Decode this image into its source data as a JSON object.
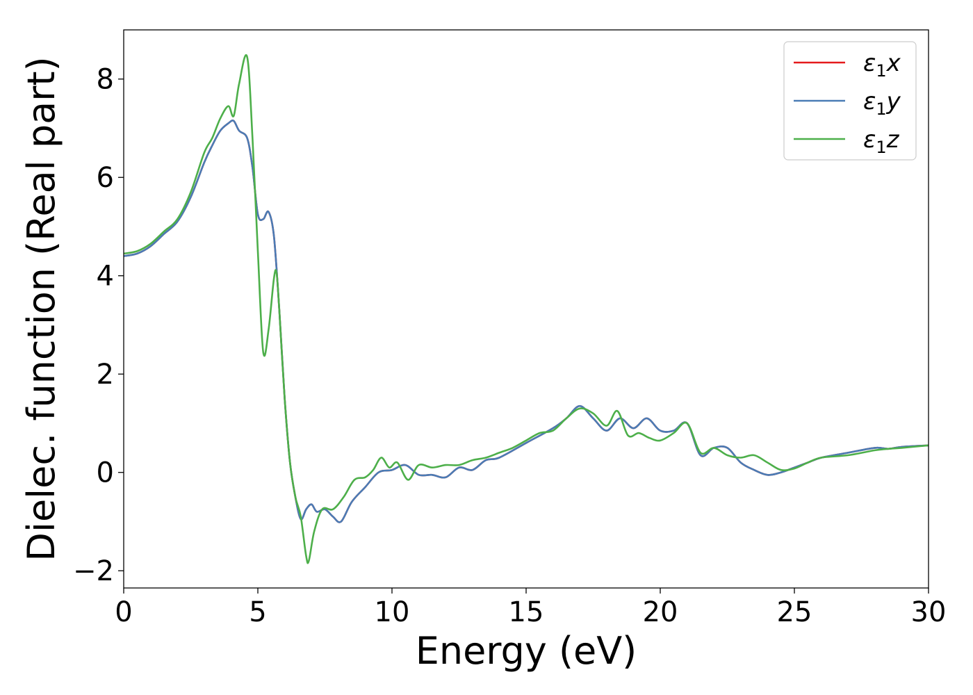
{
  "chart_data": {
    "type": "line",
    "xlabel": "Energy (eV)",
    "ylabel": "Dielec. function (Real part)",
    "xlim": [
      0,
      30
    ],
    "ylim": [
      -2.35,
      9.0
    ],
    "xticks": [
      0,
      5,
      10,
      15,
      20,
      25,
      30
    ],
    "yticks": [
      -2,
      0,
      2,
      4,
      6,
      8
    ],
    "xtick_labels": [
      "0",
      "5",
      "10",
      "15",
      "20",
      "25",
      "30"
    ],
    "ytick_labels": [
      "−2",
      "0",
      "2",
      "4",
      "6",
      "8"
    ],
    "grid": false,
    "legend_position": "top-right",
    "series": [
      {
        "name": "ε",
        "sub": "1",
        "suffix": "x",
        "color": "#e41a1c",
        "x": [
          0,
          0.5,
          1,
          1.5,
          2,
          2.5,
          3,
          3.3,
          3.6,
          3.9,
          4.1,
          4.3,
          4.6,
          4.8,
          5.0,
          5.2,
          5.4,
          5.6,
          5.8,
          6.0,
          6.2,
          6.4,
          6.6,
          6.8,
          7.0,
          7.2,
          7.5,
          7.8,
          8.1,
          8.5,
          9.0,
          9.5,
          10.0,
          10.5,
          11.0,
          11.5,
          12.0,
          12.5,
          13.0,
          13.5,
          14.0,
          15.0,
          16.0,
          16.5,
          17.0,
          17.5,
          18.0,
          18.5,
          19.0,
          19.5,
          20.0,
          20.5,
          21.0,
          21.5,
          22.0,
          22.5,
          23.0,
          23.5,
          24.0,
          24.5,
          25.0,
          25.5,
          26.0,
          27.0,
          28.0,
          28.5,
          29.0,
          30.0
        ],
        "y": [
          4.4,
          4.45,
          4.6,
          4.85,
          5.1,
          5.6,
          6.3,
          6.65,
          6.95,
          7.1,
          7.15,
          6.95,
          6.8,
          6.2,
          5.25,
          5.15,
          5.3,
          4.8,
          3.3,
          1.5,
          0.2,
          -0.5,
          -0.95,
          -0.75,
          -0.65,
          -0.8,
          -0.75,
          -0.9,
          -1.0,
          -0.6,
          -0.3,
          0.0,
          0.05,
          0.15,
          -0.05,
          -0.05,
          -0.1,
          0.1,
          0.05,
          0.25,
          0.3,
          0.6,
          0.9,
          1.1,
          1.35,
          1.1,
          0.85,
          1.1,
          0.9,
          1.1,
          0.85,
          0.85,
          1.0,
          0.35,
          0.5,
          0.5,
          0.2,
          0.05,
          -0.05,
          0.0,
          0.1,
          0.2,
          0.3,
          0.4,
          0.5,
          0.48,
          0.52,
          0.55
        ]
      },
      {
        "name": "ε",
        "sub": "1",
        "suffix": "y",
        "color": "#4a7cb5",
        "x": [
          0,
          0.5,
          1,
          1.5,
          2,
          2.5,
          3,
          3.3,
          3.6,
          3.9,
          4.1,
          4.3,
          4.6,
          4.8,
          5.0,
          5.2,
          5.4,
          5.6,
          5.8,
          6.0,
          6.2,
          6.4,
          6.6,
          6.8,
          7.0,
          7.2,
          7.5,
          7.8,
          8.1,
          8.5,
          9.0,
          9.5,
          10.0,
          10.5,
          11.0,
          11.5,
          12.0,
          12.5,
          13.0,
          13.5,
          14.0,
          15.0,
          16.0,
          16.5,
          17.0,
          17.5,
          18.0,
          18.5,
          19.0,
          19.5,
          20.0,
          20.5,
          21.0,
          21.5,
          22.0,
          22.5,
          23.0,
          23.5,
          24.0,
          24.5,
          25.0,
          25.5,
          26.0,
          27.0,
          28.0,
          28.5,
          29.0,
          30.0
        ],
        "y": [
          4.4,
          4.45,
          4.6,
          4.85,
          5.1,
          5.6,
          6.3,
          6.65,
          6.95,
          7.1,
          7.15,
          6.95,
          6.8,
          6.2,
          5.25,
          5.15,
          5.3,
          4.8,
          3.3,
          1.5,
          0.2,
          -0.5,
          -0.95,
          -0.75,
          -0.65,
          -0.8,
          -0.75,
          -0.9,
          -1.0,
          -0.6,
          -0.3,
          0.0,
          0.05,
          0.15,
          -0.05,
          -0.05,
          -0.1,
          0.1,
          0.05,
          0.25,
          0.3,
          0.6,
          0.9,
          1.1,
          1.35,
          1.1,
          0.85,
          1.1,
          0.9,
          1.1,
          0.85,
          0.85,
          1.0,
          0.35,
          0.5,
          0.5,
          0.2,
          0.05,
          -0.05,
          0.0,
          0.1,
          0.2,
          0.3,
          0.4,
          0.5,
          0.48,
          0.52,
          0.55
        ]
      },
      {
        "name": "ε",
        "sub": "1",
        "suffix": "z",
        "color": "#4daf4a",
        "x": [
          0,
          0.5,
          1,
          1.5,
          2,
          2.5,
          3,
          3.3,
          3.6,
          3.9,
          4.1,
          4.3,
          4.6,
          4.8,
          5.0,
          5.2,
          5.4,
          5.6,
          5.7,
          5.8,
          6.0,
          6.2,
          6.4,
          6.6,
          6.8,
          6.9,
          7.1,
          7.4,
          7.8,
          8.2,
          8.6,
          9.0,
          9.3,
          9.6,
          9.9,
          10.2,
          10.6,
          11.0,
          11.5,
          12.0,
          12.5,
          13.0,
          13.5,
          14.0,
          14.5,
          15.0,
          15.5,
          16.0,
          16.5,
          17.0,
          17.5,
          18.0,
          18.4,
          18.8,
          19.2,
          19.6,
          20.0,
          20.5,
          21.0,
          21.5,
          22.0,
          22.5,
          23.0,
          23.5,
          24.0,
          24.5,
          25.0,
          25.5,
          26.0,
          27.0,
          28.0,
          28.5,
          29.0,
          30.0
        ],
        "y": [
          4.45,
          4.5,
          4.65,
          4.9,
          5.15,
          5.7,
          6.5,
          6.8,
          7.2,
          7.45,
          7.25,
          7.9,
          8.45,
          6.8,
          4.5,
          2.45,
          2.9,
          3.95,
          4.05,
          3.3,
          1.5,
          0.2,
          -0.5,
          -0.9,
          -1.7,
          -1.8,
          -1.2,
          -0.75,
          -0.75,
          -0.5,
          -0.15,
          -0.1,
          0.05,
          0.3,
          0.1,
          0.2,
          -0.15,
          0.15,
          0.1,
          0.15,
          0.15,
          0.25,
          0.3,
          0.4,
          0.5,
          0.65,
          0.8,
          0.85,
          1.1,
          1.3,
          1.2,
          0.95,
          1.25,
          0.75,
          0.8,
          0.7,
          0.65,
          0.8,
          1.0,
          0.4,
          0.5,
          0.35,
          0.3,
          0.35,
          0.2,
          0.05,
          0.08,
          0.2,
          0.3,
          0.35,
          0.45,
          0.48,
          0.5,
          0.55
        ]
      }
    ]
  }
}
